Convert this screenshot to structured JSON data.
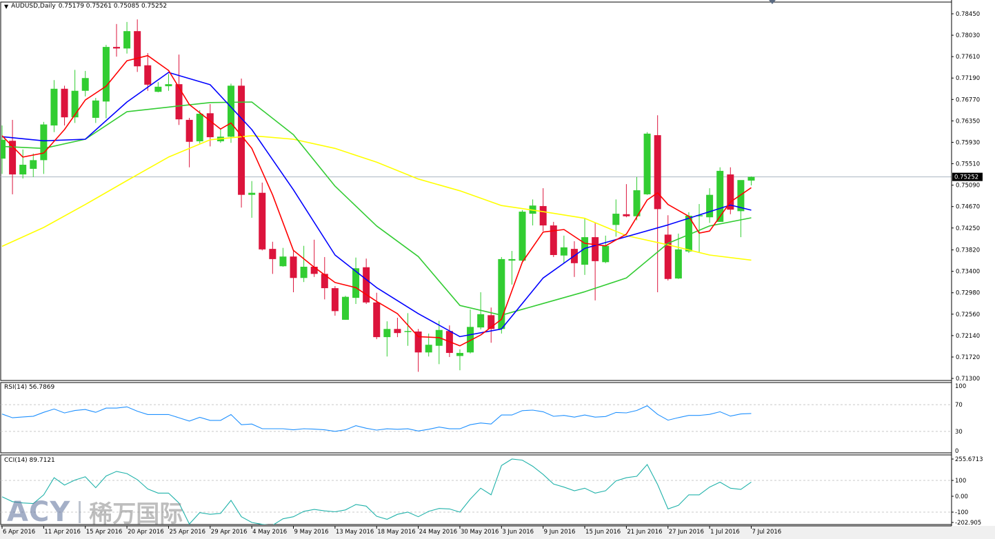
{
  "header": {
    "symbol_timeframe": "AUDUSD,Daily",
    "ohlc": "0.75179 0.75261 0.75085 0.75252"
  },
  "watermark": {
    "brand": "ACY",
    "chinese": "稀万国际"
  },
  "colors": {
    "bull": "#32cd32",
    "bear": "#dc143c",
    "ma_fast": "#ff0000",
    "ma_mid": "#0000ff",
    "ma_slow": "#33cc33",
    "ma_long": "#ffff00",
    "rsi": "#1e90ff",
    "cci": "#20b2aa",
    "current_price_line": "#a9b5c0"
  },
  "chart_data": [
    {
      "type": "candlestick",
      "title": "AUDUSD,Daily",
      "ylim": [
        0.7126,
        0.7868
      ],
      "grid": false,
      "y_ticks": [
        "0.78450",
        "0.78030",
        "0.77610",
        "0.77190",
        "0.76770",
        "0.76350",
        "0.75930",
        "0.75510",
        "0.75090",
        "0.74670",
        "0.74250",
        "0.73820",
        "0.73400",
        "0.72980",
        "0.72560",
        "0.72140",
        "0.71720",
        "0.71300"
      ],
      "current_price": "0.75252",
      "x_labels": [
        {
          "bar": 0,
          "label": "6 Apr 2016"
        },
        {
          "bar": 4,
          "label": "11 Apr 2016"
        },
        {
          "bar": 8,
          "label": "15 Apr 2016"
        },
        {
          "bar": 12,
          "label": "20 Apr 2016"
        },
        {
          "bar": 16,
          "label": "25 Apr 2016"
        },
        {
          "bar": 20,
          "label": "29 Apr 2016"
        },
        {
          "bar": 24,
          "label": "4 May 2016"
        },
        {
          "bar": 28,
          "label": "9 May 2016"
        },
        {
          "bar": 32,
          "label": "13 May 2016"
        },
        {
          "bar": 36,
          "label": "18 May 2016"
        },
        {
          "bar": 40,
          "label": "24 May 2016"
        },
        {
          "bar": 44,
          "label": "30 May 2016"
        },
        {
          "bar": 48,
          "label": "3 Jun 2016"
        },
        {
          "bar": 52,
          "label": "9 Jun 2016"
        },
        {
          "bar": 56,
          "label": "15 Jun 2016"
        },
        {
          "bar": 60,
          "label": "21 Jun 2016"
        },
        {
          "bar": 64,
          "label": "27 Jun 2016"
        },
        {
          "bar": 68,
          "label": "1 Jul 2016"
        },
        {
          "bar": 72,
          "label": "7 Jul 2016"
        }
      ],
      "ohlc": [
        [
          0.7561,
          0.7626,
          0.7531,
          0.7598
        ],
        [
          0.7596,
          0.7637,
          0.7491,
          0.753
        ],
        [
          0.753,
          0.7579,
          0.7522,
          0.7549
        ],
        [
          0.7541,
          0.7571,
          0.7525,
          0.7558
        ],
        [
          0.7558,
          0.7633,
          0.7531,
          0.7628
        ],
        [
          0.7626,
          0.7715,
          0.7613,
          0.7698
        ],
        [
          0.7698,
          0.7704,
          0.7626,
          0.7642
        ],
        [
          0.7642,
          0.7735,
          0.7631,
          0.7694
        ],
        [
          0.7694,
          0.7733,
          0.7683,
          0.7719
        ],
        [
          0.7641,
          0.768,
          0.7631,
          0.7675
        ],
        [
          0.7673,
          0.7784,
          0.764,
          0.778
        ],
        [
          0.778,
          0.7825,
          0.7761,
          0.7777
        ],
        [
          0.7777,
          0.7829,
          0.7767,
          0.7811
        ],
        [
          0.7811,
          0.7834,
          0.7731,
          0.7742
        ],
        [
          0.7744,
          0.7768,
          0.7694,
          0.7706
        ],
        [
          0.7692,
          0.7711,
          0.7691,
          0.7702
        ],
        [
          0.7703,
          0.7727,
          0.7694,
          0.7707
        ],
        [
          0.7707,
          0.7765,
          0.7627,
          0.7638
        ],
        [
          0.7637,
          0.7641,
          0.7544,
          0.7594
        ],
        [
          0.7595,
          0.7656,
          0.7591,
          0.7649
        ],
        [
          0.765,
          0.7668,
          0.7585,
          0.7603
        ],
        [
          0.7595,
          0.7618,
          0.7592,
          0.7604
        ],
        [
          0.7604,
          0.7708,
          0.7592,
          0.7704
        ],
        [
          0.7704,
          0.7718,
          0.7465,
          0.749
        ],
        [
          0.749,
          0.7517,
          0.7445,
          0.7494
        ],
        [
          0.7494,
          0.7514,
          0.7381,
          0.7383
        ],
        [
          0.7384,
          0.7398,
          0.7335,
          0.7364
        ],
        [
          0.735,
          0.7386,
          0.7349,
          0.7369
        ],
        [
          0.7369,
          0.738,
          0.7299,
          0.7327
        ],
        [
          0.7327,
          0.739,
          0.7319,
          0.7349
        ],
        [
          0.7349,
          0.7402,
          0.7329,
          0.7335
        ],
        [
          0.7335,
          0.7368,
          0.7285,
          0.7307
        ],
        [
          0.7307,
          0.7311,
          0.7253,
          0.7262
        ],
        [
          0.7245,
          0.7292,
          0.7245,
          0.729
        ],
        [
          0.7288,
          0.7367,
          0.7276,
          0.7346
        ],
        [
          0.7348,
          0.7365,
          0.7276,
          0.7279
        ],
        [
          0.7279,
          0.7298,
          0.7207,
          0.7211
        ],
        [
          0.7211,
          0.7242,
          0.7173,
          0.7227
        ],
        [
          0.7227,
          0.7249,
          0.7211,
          0.7219
        ],
        [
          0.7222,
          0.7258,
          0.7194,
          0.7223
        ],
        [
          0.7222,
          0.7227,
          0.7143,
          0.7181
        ],
        [
          0.7181,
          0.7218,
          0.7173,
          0.7196
        ],
        [
          0.7194,
          0.7243,
          0.7158,
          0.7225
        ],
        [
          0.7223,
          0.7234,
          0.7172,
          0.718
        ],
        [
          0.7174,
          0.7187,
          0.7146,
          0.718
        ],
        [
          0.7181,
          0.7265,
          0.7179,
          0.7231
        ],
        [
          0.723,
          0.7299,
          0.7226,
          0.7256
        ],
        [
          0.7254,
          0.7269,
          0.72,
          0.7227
        ],
        [
          0.7227,
          0.7368,
          0.7218,
          0.7364
        ],
        [
          0.7361,
          0.738,
          0.7314,
          0.7364
        ],
        [
          0.7361,
          0.746,
          0.736,
          0.7457
        ],
        [
          0.7453,
          0.7481,
          0.743,
          0.7469
        ],
        [
          0.7468,
          0.7503,
          0.7419,
          0.743
        ],
        [
          0.743,
          0.7437,
          0.7368,
          0.7372
        ],
        [
          0.7371,
          0.741,
          0.7356,
          0.7387
        ],
        [
          0.7384,
          0.7399,
          0.7329,
          0.7356
        ],
        [
          0.7353,
          0.7445,
          0.7333,
          0.7407
        ],
        [
          0.7407,
          0.7435,
          0.7283,
          0.736
        ],
        [
          0.7358,
          0.741,
          0.7356,
          0.739
        ],
        [
          0.7431,
          0.7481,
          0.7408,
          0.7453
        ],
        [
          0.7452,
          0.7511,
          0.7446,
          0.7448
        ],
        [
          0.7448,
          0.7525,
          0.744,
          0.7499
        ],
        [
          0.7491,
          0.7613,
          0.749,
          0.761
        ],
        [
          0.7607,
          0.7646,
          0.7299,
          0.7462
        ],
        [
          0.7412,
          0.745,
          0.7322,
          0.7325
        ],
        [
          0.7326,
          0.7414,
          0.7325,
          0.7383
        ],
        [
          0.7379,
          0.7456,
          0.7376,
          0.7449
        ],
        [
          0.7448,
          0.7472,
          0.7376,
          0.745
        ],
        [
          0.7446,
          0.7503,
          0.7435,
          0.749
        ],
        [
          0.7437,
          0.7544,
          0.7437,
          0.7537
        ],
        [
          0.753,
          0.7544,
          0.7452,
          0.7461
        ],
        [
          0.7458,
          0.7517,
          0.7407,
          0.7519
        ],
        [
          0.75179,
          0.75261,
          0.75085,
          0.75252
        ]
      ],
      "moving_averages": [
        {
          "color_key": "ma_long",
          "points": [
            [
              0,
              0.7389
            ],
            [
              4,
              0.7426
            ],
            [
              8,
              0.7471
            ],
            [
              12,
              0.7518
            ],
            [
              16,
              0.7564
            ],
            [
              20,
              0.7598
            ],
            [
              24,
              0.7606
            ],
            [
              28,
              0.7599
            ],
            [
              32,
              0.7581
            ],
            [
              36,
              0.7554
            ],
            [
              40,
              0.7521
            ],
            [
              44,
              0.7498
            ],
            [
              48,
              0.7469
            ],
            [
              52,
              0.7457
            ],
            [
              56,
              0.7444
            ],
            [
              60,
              0.741
            ],
            [
              64,
              0.7392
            ],
            [
              68,
              0.7372
            ],
            [
              72,
              0.7362
            ]
          ]
        },
        {
          "color_key": "ma_slow",
          "points": [
            [
              0,
              0.7585
            ],
            [
              4,
              0.7581
            ],
            [
              8,
              0.7599
            ],
            [
              12,
              0.7653
            ],
            [
              16,
              0.7662
            ],
            [
              20,
              0.7671
            ],
            [
              24,
              0.7672
            ],
            [
              28,
              0.7608
            ],
            [
              32,
              0.7507
            ],
            [
              36,
              0.7429
            ],
            [
              40,
              0.7369
            ],
            [
              44,
              0.7273
            ],
            [
              48,
              0.7254
            ],
            [
              52,
              0.7277
            ],
            [
              56,
              0.73
            ],
            [
              60,
              0.7327
            ],
            [
              64,
              0.7395
            ],
            [
              68,
              0.7429
            ],
            [
              72,
              0.7445
            ]
          ]
        },
        {
          "color_key": "ma_mid",
          "points": [
            [
              0,
              0.7604
            ],
            [
              4,
              0.7596
            ],
            [
              8,
              0.7599
            ],
            [
              12,
              0.7672
            ],
            [
              16,
              0.773
            ],
            [
              20,
              0.7706
            ],
            [
              24,
              0.7618
            ],
            [
              28,
              0.75
            ],
            [
              32,
              0.7372
            ],
            [
              36,
              0.7308
            ],
            [
              40,
              0.7257
            ],
            [
              44,
              0.7212
            ],
            [
              48,
              0.7227
            ],
            [
              52,
              0.7327
            ],
            [
              56,
              0.7385
            ],
            [
              60,
              0.7408
            ],
            [
              64,
              0.7431
            ],
            [
              68,
              0.7457
            ],
            [
              70,
              0.747
            ],
            [
              72,
              0.746
            ]
          ]
        },
        {
          "color_key": "ma_fast",
          "points": [
            [
              0,
              0.7606
            ],
            [
              2,
              0.7564
            ],
            [
              4,
              0.7572
            ],
            [
              6,
              0.7618
            ],
            [
              8,
              0.7676
            ],
            [
              10,
              0.7703
            ],
            [
              12,
              0.7753
            ],
            [
              14,
              0.7763
            ],
            [
              16,
              0.7734
            ],
            [
              18,
              0.7667
            ],
            [
              20,
              0.7635
            ],
            [
              21,
              0.7619
            ],
            [
              22,
              0.7631
            ],
            [
              24,
              0.7581
            ],
            [
              26,
              0.749
            ],
            [
              28,
              0.7381
            ],
            [
              30,
              0.7348
            ],
            [
              32,
              0.7318
            ],
            [
              34,
              0.7308
            ],
            [
              36,
              0.7281
            ],
            [
              38,
              0.7257
            ],
            [
              40,
              0.7212
            ],
            [
              42,
              0.721
            ],
            [
              44,
              0.7194
            ],
            [
              46,
              0.7215
            ],
            [
              48,
              0.7246
            ],
            [
              50,
              0.7358
            ],
            [
              52,
              0.7417
            ],
            [
              54,
              0.7422
            ],
            [
              56,
              0.7395
            ],
            [
              58,
              0.739
            ],
            [
              60,
              0.7413
            ],
            [
              62,
              0.748
            ],
            [
              63,
              0.7494
            ],
            [
              64,
              0.7471
            ],
            [
              66,
              0.7448
            ],
            [
              67,
              0.7415
            ],
            [
              68,
              0.7419
            ],
            [
              70,
              0.7476
            ],
            [
              72,
              0.7504
            ]
          ]
        }
      ]
    },
    {
      "type": "line",
      "title": "RSI(14) 56.7869",
      "ylim": [
        0,
        100
      ],
      "levels": [
        70,
        30
      ],
      "y_ticks": [
        "100",
        "70",
        "30",
        "0"
      ],
      "values": [
        56,
        50.4,
        51.7,
        52.7,
        58.6,
        63.5,
        57.6,
        61.2,
        62.8,
        58.6,
        64.8,
        64.8,
        66.7,
        60.2,
        55.3,
        55.3,
        55.3,
        50.4,
        45.5,
        51,
        46.5,
        46.5,
        55.3,
        40,
        41,
        34,
        34,
        34,
        32.4,
        34,
        33.4,
        32.4,
        30.1,
        32.4,
        38.6,
        34.7,
        32,
        33.9,
        33.2,
        33.9,
        30.6,
        33.2,
        36.5,
        33.9,
        33.9,
        40,
        42.6,
        41,
        54.5,
        54.5,
        61,
        61.9,
        59.4,
        52.6,
        53.9,
        51.3,
        54.5,
        51.3,
        52.3,
        58.4,
        57.7,
        61.3,
        68.4,
        55.5,
        46.8,
        50.6,
        53.9,
        53.9,
        55.5,
        59.4,
        52.9,
        56.1,
        56.7869
      ]
    },
    {
      "type": "line",
      "title": "CCI(14) 89.7121",
      "ylim": [
        -202.905,
        255.6713
      ],
      "levels": [
        100,
        -100
      ],
      "y_ticks": [
        "255.6713",
        "100",
        "0.00",
        "-100",
        "-202.905"
      ],
      "values": [
        -3,
        -34,
        -42,
        -46,
        9,
        117,
        71,
        102,
        123,
        54,
        128,
        157,
        143,
        105,
        46,
        20,
        20,
        -42,
        -175,
        -103,
        -114,
        -108,
        -26,
        -129,
        -165,
        -177,
        -183,
        -142,
        -129,
        -95,
        -83,
        -92,
        -98,
        -86,
        -52,
        -62,
        -126,
        -145,
        -114,
        -100,
        -129,
        -95,
        -77,
        -80,
        -100,
        -18,
        51,
        9,
        194,
        235,
        228,
        189,
        138,
        77,
        58,
        35,
        51,
        20,
        35,
        97,
        117,
        126,
        200,
        74,
        -80,
        -57,
        9,
        9,
        58,
        89,
        51,
        43,
        89.7121
      ]
    }
  ]
}
